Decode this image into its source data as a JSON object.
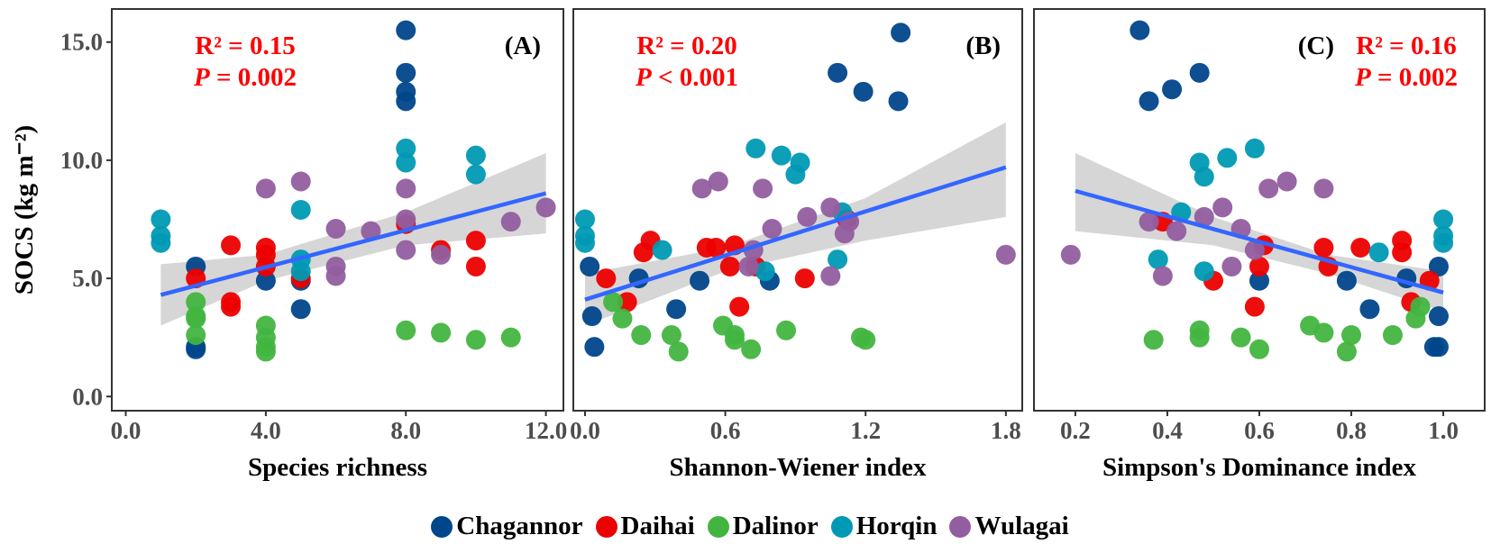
{
  "chart_data": [
    {
      "type": "scatter",
      "panel_letter": "(A)",
      "xlabel": "Species richness",
      "ylabel": "SOCS (kg m⁻²)",
      "xlim": [
        -0.4,
        12.5
      ],
      "ylim": [
        -0.6,
        16.4
      ],
      "xticks": [
        0,
        4,
        8,
        12
      ],
      "xtick_labels": [
        "0.0",
        "4.0",
        "8.0",
        "12.0"
      ],
      "yticks": [
        0,
        5,
        10,
        15
      ],
      "ytick_labels": [
        "0.0",
        "5.0",
        "10.0",
        "15.0"
      ],
      "stats": {
        "r2": "R² = 0.15",
        "p_label": "P",
        "p_text": " = 0.002"
      },
      "fit": {
        "x": [
          1,
          12
        ],
        "y": [
          4.3,
          8.6
        ]
      },
      "ci": {
        "x": [
          1,
          4,
          8,
          12
        ],
        "lower": [
          3.0,
          4.9,
          6.4,
          6.9
        ],
        "upper": [
          5.6,
          6.0,
          7.8,
          10.3
        ]
      },
      "series": [
        {
          "name": "Chagannor",
          "points": [
            [
              2,
              5.5
            ],
            [
              2,
              2.1
            ],
            [
              2,
              2.0
            ],
            [
              4,
              4.9
            ],
            [
              5,
              4.9
            ],
            [
              5,
              3.7
            ],
            [
              8,
              15.5
            ],
            [
              8,
              13.7
            ],
            [
              8,
              12.9
            ],
            [
              8,
              12.5
            ]
          ]
        },
        {
          "name": "Daihai",
          "points": [
            [
              2,
              5.0
            ],
            [
              3,
              6.4
            ],
            [
              3,
              4.0
            ],
            [
              3,
              3.8
            ],
            [
              4,
              6.3
            ],
            [
              4,
              6.0
            ],
            [
              4,
              5.5
            ],
            [
              5,
              5.0
            ],
            [
              8,
              7.3
            ],
            [
              9,
              6.2
            ],
            [
              10,
              6.6
            ],
            [
              10,
              5.5
            ]
          ]
        },
        {
          "name": "Dalinor",
          "points": [
            [
              2,
              4.0
            ],
            [
              2,
              3.4
            ],
            [
              2,
              3.3
            ],
            [
              2,
              2.6
            ],
            [
              4,
              3.0
            ],
            [
              4,
              2.5
            ],
            [
              4,
              2.1
            ],
            [
              4,
              1.9
            ],
            [
              8,
              2.8
            ],
            [
              9,
              2.7
            ],
            [
              10,
              2.4
            ],
            [
              11,
              2.5
            ]
          ]
        },
        {
          "name": "Horqin",
          "points": [
            [
              1,
              7.5
            ],
            [
              1,
              6.8
            ],
            [
              1,
              6.5
            ],
            [
              5,
              7.9
            ],
            [
              5,
              5.8
            ],
            [
              5,
              5.3
            ],
            [
              8,
              10.5
            ],
            [
              8,
              9.9
            ],
            [
              10,
              10.2
            ],
            [
              10,
              9.4
            ]
          ]
        },
        {
          "name": "Wulagai",
          "points": [
            [
              4,
              8.8
            ],
            [
              5,
              9.1
            ],
            [
              6,
              7.1
            ],
            [
              6,
              5.5
            ],
            [
              6,
              5.1
            ],
            [
              7,
              7.0
            ],
            [
              8,
              8.8
            ],
            [
              8,
              7.5
            ],
            [
              8,
              6.2
            ],
            [
              9,
              6.0
            ],
            [
              11,
              7.4
            ],
            [
              12,
              8.0
            ]
          ]
        }
      ]
    },
    {
      "type": "scatter",
      "panel_letter": "(B)",
      "xlabel": "Shannon-Wiener index",
      "xlim": [
        -0.05,
        1.87
      ],
      "ylim": [
        -0.6,
        16.4
      ],
      "xticks": [
        0,
        0.6,
        1.2,
        1.8
      ],
      "xtick_labels": [
        "0.0",
        "0.6",
        "1.2",
        "1.8"
      ],
      "stats": {
        "r2": "R² = 0.20",
        "p_label": "P",
        "p_text": " < 0.001"
      },
      "fit": {
        "x": [
          0,
          1.8
        ],
        "y": [
          4.1,
          9.7
        ]
      },
      "ci": {
        "x": [
          0,
          0.6,
          1.2,
          1.8
        ],
        "lower": [
          3.0,
          5.3,
          6.6,
          7.6
        ],
        "upper": [
          5.2,
          6.3,
          8.4,
          11.6
        ]
      },
      "series": [
        {
          "name": "Chagannor",
          "points": [
            [
              1.35,
              15.4
            ],
            [
              1.08,
              13.7
            ],
            [
              1.19,
              12.9
            ],
            [
              1.34,
              12.5
            ],
            [
              0.02,
              5.5
            ],
            [
              0.23,
              5.0
            ],
            [
              0.49,
              4.9
            ],
            [
              0.79,
              4.9
            ],
            [
              0.39,
              3.7
            ],
            [
              0.03,
              3.4
            ],
            [
              0.04,
              2.1
            ]
          ]
        },
        {
          "name": "Daihai",
          "points": [
            [
              0.09,
              5.0
            ],
            [
              0.28,
              6.6
            ],
            [
              0.25,
              6.1
            ],
            [
              0.52,
              6.3
            ],
            [
              0.56,
              6.3
            ],
            [
              0.64,
              6.4
            ],
            [
              0.62,
              5.5
            ],
            [
              0.73,
              5.5
            ],
            [
              0.94,
              5.0
            ],
            [
              0.18,
              4.0
            ],
            [
              0.66,
              3.8
            ],
            [
              1.12,
              7.5
            ]
          ]
        },
        {
          "name": "Dalinor",
          "points": [
            [
              0.12,
              4.0
            ],
            [
              0.16,
              3.3
            ],
            [
              0.24,
              2.6
            ],
            [
              0.37,
              2.6
            ],
            [
              0.4,
              1.9
            ],
            [
              0.59,
              3.0
            ],
            [
              0.64,
              2.6
            ],
            [
              0.64,
              2.4
            ],
            [
              0.71,
              2.0
            ],
            [
              0.86,
              2.8
            ],
            [
              1.18,
              2.5
            ],
            [
              1.2,
              2.4
            ]
          ]
        },
        {
          "name": "Horqin",
          "points": [
            [
              0.0,
              7.5
            ],
            [
              0.0,
              6.8
            ],
            [
              0.0,
              6.5
            ],
            [
              0.33,
              6.2
            ],
            [
              0.73,
              10.5
            ],
            [
              0.84,
              10.2
            ],
            [
              0.92,
              9.9
            ],
            [
              0.9,
              9.4
            ],
            [
              1.08,
              5.8
            ],
            [
              0.77,
              5.3
            ],
            [
              1.1,
              7.8
            ]
          ]
        },
        {
          "name": "Wulagai",
          "points": [
            [
              0.5,
              8.8
            ],
            [
              0.57,
              9.1
            ],
            [
              0.76,
              8.8
            ],
            [
              0.95,
              7.6
            ],
            [
              1.05,
              8.0
            ],
            [
              0.8,
              7.1
            ],
            [
              0.72,
              6.2
            ],
            [
              1.05,
              5.1
            ],
            [
              1.11,
              6.9
            ],
            [
              1.13,
              7.4
            ],
            [
              0.7,
              5.5
            ],
            [
              1.8,
              6.0
            ]
          ]
        }
      ]
    },
    {
      "type": "scatter",
      "panel_letter": "(C)",
      "xlabel": "Simpson's Dominance index",
      "xlim": [
        0.11,
        1.09
      ],
      "ylim": [
        -0.6,
        16.4
      ],
      "xticks": [
        0.2,
        0.4,
        0.6,
        0.8,
        1.0
      ],
      "xtick_labels": [
        "0.2",
        "0.4",
        "0.6",
        "0.8",
        "1.0"
      ],
      "stats": {
        "r2": "R² = 0.16",
        "p_label": "P",
        "p_text": " = 0.002"
      },
      "fit": {
        "x": [
          0.2,
          1.0
        ],
        "y": [
          8.7,
          4.4
        ]
      },
      "ci": {
        "x": [
          0.2,
          0.5,
          0.75,
          1.0
        ],
        "lower": [
          7.0,
          6.4,
          5.2,
          3.6
        ],
        "upper": [
          10.3,
          7.6,
          6.0,
          5.3
        ]
      },
      "series": [
        {
          "name": "Chagannor",
          "points": [
            [
              0.34,
              15.5
            ],
            [
              0.41,
              13.0
            ],
            [
              0.36,
              12.5
            ],
            [
              0.47,
              13.7
            ],
            [
              0.6,
              4.9
            ],
            [
              0.79,
              4.9
            ],
            [
              0.84,
              3.7
            ],
            [
              0.92,
              5.0
            ],
            [
              0.99,
              5.5
            ],
            [
              0.99,
              3.4
            ],
            [
              0.98,
              2.1
            ],
            [
              0.99,
              2.1
            ]
          ]
        },
        {
          "name": "Daihai",
          "points": [
            [
              0.39,
              7.4
            ],
            [
              0.5,
              4.9
            ],
            [
              0.59,
              3.8
            ],
            [
              0.61,
              6.4
            ],
            [
              0.6,
              5.5
            ],
            [
              0.74,
              6.3
            ],
            [
              0.75,
              5.5
            ],
            [
              0.82,
              6.3
            ],
            [
              0.91,
              6.6
            ],
            [
              0.91,
              6.1
            ],
            [
              0.93,
              4.0
            ],
            [
              0.97,
              4.9
            ]
          ]
        },
        {
          "name": "Dalinor",
          "points": [
            [
              0.37,
              2.4
            ],
            [
              0.47,
              2.8
            ],
            [
              0.47,
              2.5
            ],
            [
              0.56,
              2.5
            ],
            [
              0.6,
              2.0
            ],
            [
              0.71,
              3.0
            ],
            [
              0.74,
              2.7
            ],
            [
              0.79,
              1.9
            ],
            [
              0.8,
              2.6
            ],
            [
              0.89,
              2.6
            ],
            [
              0.94,
              3.3
            ],
            [
              0.95,
              3.8
            ]
          ]
        },
        {
          "name": "Horqin",
          "points": [
            [
              0.38,
              5.8
            ],
            [
              0.43,
              7.8
            ],
            [
              0.47,
              9.9
            ],
            [
              0.48,
              9.3
            ],
            [
              0.53,
              10.1
            ],
            [
              0.59,
              10.5
            ],
            [
              0.48,
              5.3
            ],
            [
              0.86,
              6.1
            ],
            [
              1.0,
              7.5
            ],
            [
              1.0,
              6.8
            ],
            [
              1.0,
              6.5
            ]
          ]
        },
        {
          "name": "Wulagai",
          "points": [
            [
              0.19,
              6.0
            ],
            [
              0.36,
              7.4
            ],
            [
              0.39,
              5.1
            ],
            [
              0.42,
              7.0
            ],
            [
              0.48,
              7.6
            ],
            [
              0.52,
              8.0
            ],
            [
              0.54,
              5.5
            ],
            [
              0.56,
              7.1
            ],
            [
              0.62,
              8.8
            ],
            [
              0.66,
              9.1
            ],
            [
              0.74,
              8.8
            ],
            [
              0.59,
              6.2
            ]
          ]
        }
      ]
    }
  ],
  "legend": [
    {
      "name": "Chagannor",
      "color": "#00468B"
    },
    {
      "name": "Daihai",
      "color": "#ED0000"
    },
    {
      "name": "Dalinor",
      "color": "#42B540"
    },
    {
      "name": "Horqin",
      "color": "#0099B4"
    },
    {
      "name": "Wulagai",
      "color": "#925E9F"
    }
  ],
  "colors": {
    "fit_line": "#3366FF",
    "ci_band": "#C8C8C8",
    "stat_text": "#FF0000"
  }
}
